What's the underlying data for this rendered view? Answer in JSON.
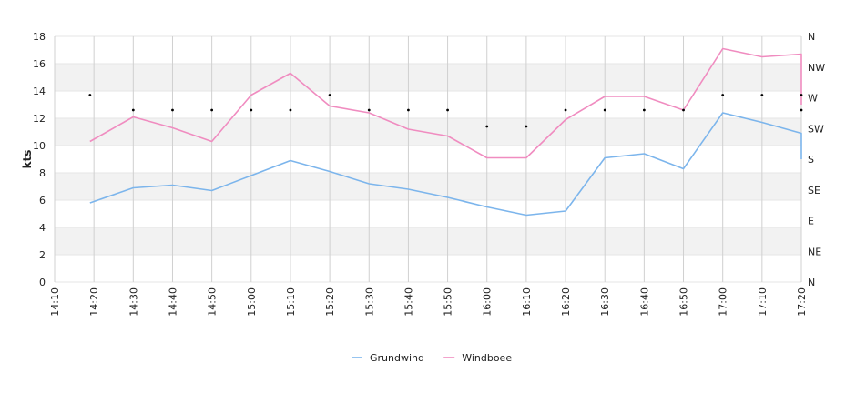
{
  "chart_data": {
    "type": "line",
    "ylabel": "kts",
    "ylim": [
      0,
      18
    ],
    "y_ticks": [
      "0",
      "2",
      "4",
      "6",
      "8",
      "10",
      "12",
      "14",
      "16",
      "18"
    ],
    "x_ticks": [
      "14:10",
      "14:20",
      "14:30",
      "14:40",
      "14:50",
      "15:00",
      "15:10",
      "15:20",
      "15:30",
      "15:40",
      "15:50",
      "16:00",
      "16:10",
      "16:20",
      "16:30",
      "16:40",
      "16:50",
      "17:00",
      "17:10",
      "17:20"
    ],
    "direction_ticks": [
      "N",
      "NE",
      "E",
      "SE",
      "S",
      "SW",
      "W",
      "NW",
      "N"
    ],
    "grid": true,
    "legend_position": "bottom",
    "series": [
      {
        "name": "Grundwind",
        "color": "#7cb5ec",
        "points": [
          [
            "14:19",
            5.8
          ],
          [
            "14:30",
            6.9
          ],
          [
            "14:40",
            7.1
          ],
          [
            "14:50",
            6.7
          ],
          [
            "15:00",
            7.8
          ],
          [
            "15:10",
            8.9
          ],
          [
            "15:20",
            8.1
          ],
          [
            "15:30",
            7.2
          ],
          [
            "15:40",
            6.8
          ],
          [
            "15:50",
            6.2
          ],
          [
            "16:00",
            5.5
          ],
          [
            "16:10",
            4.9
          ],
          [
            "16:20",
            5.2
          ],
          [
            "16:30",
            9.1
          ],
          [
            "16:40",
            9.4
          ],
          [
            "16:50",
            8.3
          ],
          [
            "17:00",
            12.4
          ],
          [
            "17:10",
            11.7
          ],
          [
            "17:20",
            10.9
          ],
          [
            "17:20",
            9.0
          ]
        ]
      },
      {
        "name": "Windboee",
        "color": "#f08cc0",
        "points": [
          [
            "14:19",
            10.3
          ],
          [
            "14:30",
            12.1
          ],
          [
            "14:40",
            11.3
          ],
          [
            "14:50",
            10.3
          ],
          [
            "15:00",
            13.7
          ],
          [
            "15:10",
            15.3
          ],
          [
            "15:20",
            12.9
          ],
          [
            "15:30",
            12.4
          ],
          [
            "15:40",
            11.2
          ],
          [
            "15:50",
            10.7
          ],
          [
            "16:00",
            9.1
          ],
          [
            "16:10",
            9.1
          ],
          [
            "16:20",
            11.9
          ],
          [
            "16:30",
            13.6
          ],
          [
            "16:40",
            13.6
          ],
          [
            "16:50",
            12.6
          ],
          [
            "17:00",
            17.1
          ],
          [
            "17:10",
            16.5
          ],
          [
            "17:20",
            16.7
          ],
          [
            "17:20",
            13.0
          ]
        ]
      }
    ],
    "direction_points": [
      [
        "14:19",
        "W"
      ],
      [
        "14:30",
        "W"
      ],
      [
        "14:40",
        "W"
      ],
      [
        "14:50",
        "W"
      ],
      [
        "15:00",
        "W"
      ],
      [
        "15:10",
        "W"
      ],
      [
        "15:20",
        "W"
      ],
      [
        "15:30",
        "W"
      ],
      [
        "15:40",
        "W"
      ],
      [
        "15:50",
        "W"
      ],
      [
        "16:00",
        "SW"
      ],
      [
        "16:10",
        "SW"
      ],
      [
        "16:20",
        "W"
      ],
      [
        "16:30",
        "W"
      ],
      [
        "16:40",
        "W"
      ],
      [
        "16:50",
        "W"
      ],
      [
        "17:00",
        "W"
      ],
      [
        "17:10",
        "W"
      ],
      [
        "17:20",
        "W"
      ],
      [
        "17:20",
        "W"
      ]
    ],
    "direction_marker_values": [
      13.7,
      12.6,
      12.6,
      12.6,
      12.6,
      12.6,
      13.7,
      12.6,
      12.6,
      12.6,
      11.4,
      11.4,
      12.6,
      12.6,
      12.6,
      12.6,
      13.7,
      13.7,
      13.7,
      12.6
    ]
  }
}
